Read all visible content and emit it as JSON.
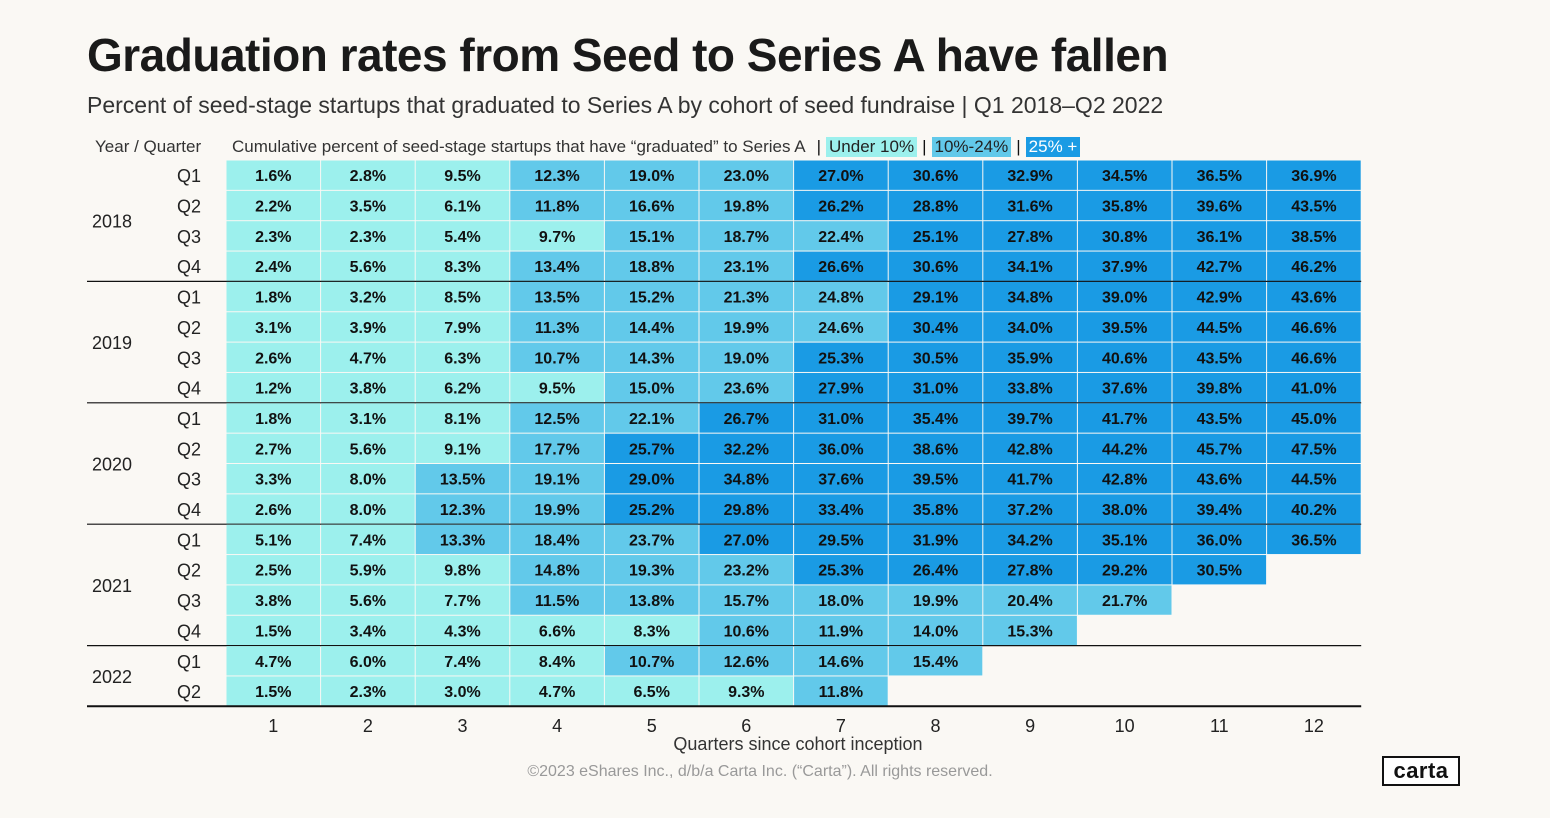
{
  "header": {
    "title": "Graduation rates from Seed to Series A have fallen",
    "subtitle": "Percent of seed-stage startups that graduated to Series A by cohort of seed fundraise | Q1 2018–Q2 2022",
    "col_header": "Year / Quarter",
    "description": "Cumulative percent of seed-stage startups that have “graduated” to Series A",
    "separator": "|",
    "legend": [
      {
        "label": "Under 10%",
        "color": "#9cf0ed"
      },
      {
        "label": "10%-24%",
        "color": "#62c9ea"
      },
      {
        "label": "25% +",
        "color": "#1a9be4"
      }
    ]
  },
  "chart_data": {
    "type": "heatmap",
    "title": "Graduation rates from Seed to Series A have fallen",
    "subtitle": "Percent of seed-stage startups that graduated to Series A by cohort of seed fundraise | Q1 2018–Q2 2022",
    "xlabel": "Quarters since cohort inception",
    "ylabel": "Year / Quarter",
    "x": [
      1,
      2,
      3,
      4,
      5,
      6,
      7,
      8,
      9,
      10,
      11,
      12
    ],
    "years": [
      {
        "year": "2018",
        "quarters": [
          "Q1",
          "Q2",
          "Q3",
          "Q4"
        ]
      },
      {
        "year": "2019",
        "quarters": [
          "Q1",
          "Q2",
          "Q3",
          "Q4"
        ]
      },
      {
        "year": "2020",
        "quarters": [
          "Q1",
          "Q2",
          "Q3",
          "Q4"
        ]
      },
      {
        "year": "2021",
        "quarters": [
          "Q1",
          "Q2",
          "Q3",
          "Q4"
        ]
      },
      {
        "year": "2022",
        "quarters": [
          "Q1",
          "Q2"
        ]
      }
    ],
    "values": [
      [
        "1.6%",
        "2.8%",
        "9.5%",
        "12.3%",
        "19.0%",
        "23.0%",
        "27.0%",
        "30.6%",
        "32.9%",
        "34.5%",
        "36.5%",
        "36.9%"
      ],
      [
        "2.2%",
        "3.5%",
        "6.1%",
        "11.8%",
        "16.6%",
        "19.8%",
        "26.2%",
        "28.8%",
        "31.6%",
        "35.8%",
        "39.6%",
        "43.5%"
      ],
      [
        "2.3%",
        "2.3%",
        "5.4%",
        "9.7%",
        "15.1%",
        "18.7%",
        "22.4%",
        "25.1%",
        "27.8%",
        "30.8%",
        "36.1%",
        "38.5%"
      ],
      [
        "2.4%",
        "5.6%",
        "8.3%",
        "13.4%",
        "18.8%",
        "23.1%",
        "26.6%",
        "30.6%",
        "34.1%",
        "37.9%",
        "42.7%",
        "46.2%"
      ],
      [
        "1.8%",
        "3.2%",
        "8.5%",
        "13.5%",
        "15.2%",
        "21.3%",
        "24.8%",
        "29.1%",
        "34.8%",
        "39.0%",
        "42.9%",
        "43.6%"
      ],
      [
        "3.1%",
        "3.9%",
        "7.9%",
        "11.3%",
        "14.4%",
        "19.9%",
        "24.6%",
        "30.4%",
        "34.0%",
        "39.5%",
        "44.5%",
        "46.6%"
      ],
      [
        "2.6%",
        "4.7%",
        "6.3%",
        "10.7%",
        "14.3%",
        "19.0%",
        "25.3%",
        "30.5%",
        "35.9%",
        "40.6%",
        "43.5%",
        "46.6%"
      ],
      [
        "1.2%",
        "3.8%",
        "6.2%",
        "9.5%",
        "15.0%",
        "23.6%",
        "27.9%",
        "31.0%",
        "33.8%",
        "37.6%",
        "39.8%",
        "41.0%"
      ],
      [
        "1.8%",
        "3.1%",
        "8.1%",
        "12.5%",
        "22.1%",
        "26.7%",
        "31.0%",
        "35.4%",
        "39.7%",
        "41.7%",
        "43.5%",
        "45.0%"
      ],
      [
        "2.7%",
        "5.6%",
        "9.1%",
        "17.7%",
        "25.7%",
        "32.2%",
        "36.0%",
        "38.6%",
        "42.8%",
        "44.2%",
        "45.7%",
        "47.5%"
      ],
      [
        "3.3%",
        "8.0%",
        "13.5%",
        "19.1%",
        "29.0%",
        "34.8%",
        "37.6%",
        "39.5%",
        "41.7%",
        "42.8%",
        "43.6%",
        "44.5%"
      ],
      [
        "2.6%",
        "8.0%",
        "12.3%",
        "19.9%",
        "25.2%",
        "29.8%",
        "33.4%",
        "35.8%",
        "37.2%",
        "38.0%",
        "39.4%",
        "40.2%"
      ],
      [
        "5.1%",
        "7.4%",
        "13.3%",
        "18.4%",
        "23.7%",
        "27.0%",
        "29.5%",
        "31.9%",
        "34.2%",
        "35.1%",
        "36.0%",
        "36.5%"
      ],
      [
        "2.5%",
        "5.9%",
        "9.8%",
        "14.8%",
        "19.3%",
        "23.2%",
        "25.3%",
        "26.4%",
        "27.8%",
        "29.2%",
        "30.5%"
      ],
      [
        "3.8%",
        "5.6%",
        "7.7%",
        "11.5%",
        "13.8%",
        "15.7%",
        "18.0%",
        "19.9%",
        "20.4%",
        "21.7%"
      ],
      [
        "1.5%",
        "3.4%",
        "4.3%",
        "6.6%",
        "8.3%",
        "10.6%",
        "11.9%",
        "14.0%",
        "15.3%"
      ],
      [
        "4.7%",
        "6.0%",
        "7.4%",
        "8.4%",
        "10.7%",
        "12.6%",
        "14.6%",
        "15.4%"
      ],
      [
        "1.5%",
        "2.3%",
        "3.0%",
        "4.7%",
        "6.5%",
        "9.3%",
        "11.8%"
      ]
    ],
    "color_scale": [
      {
        "label": "Under 10%",
        "max": 10,
        "color": "#9cf0ed"
      },
      {
        "label": "10%-24%",
        "max": 25,
        "color": "#62c9ea"
      },
      {
        "label": "25% +",
        "max": 100,
        "color": "#1a9be4"
      }
    ],
    "legend": "top"
  },
  "footer": {
    "copyright": "©2023 eShares Inc., d/b/a Carta Inc. (“Carta”). All rights reserved.",
    "logo": "carta"
  }
}
